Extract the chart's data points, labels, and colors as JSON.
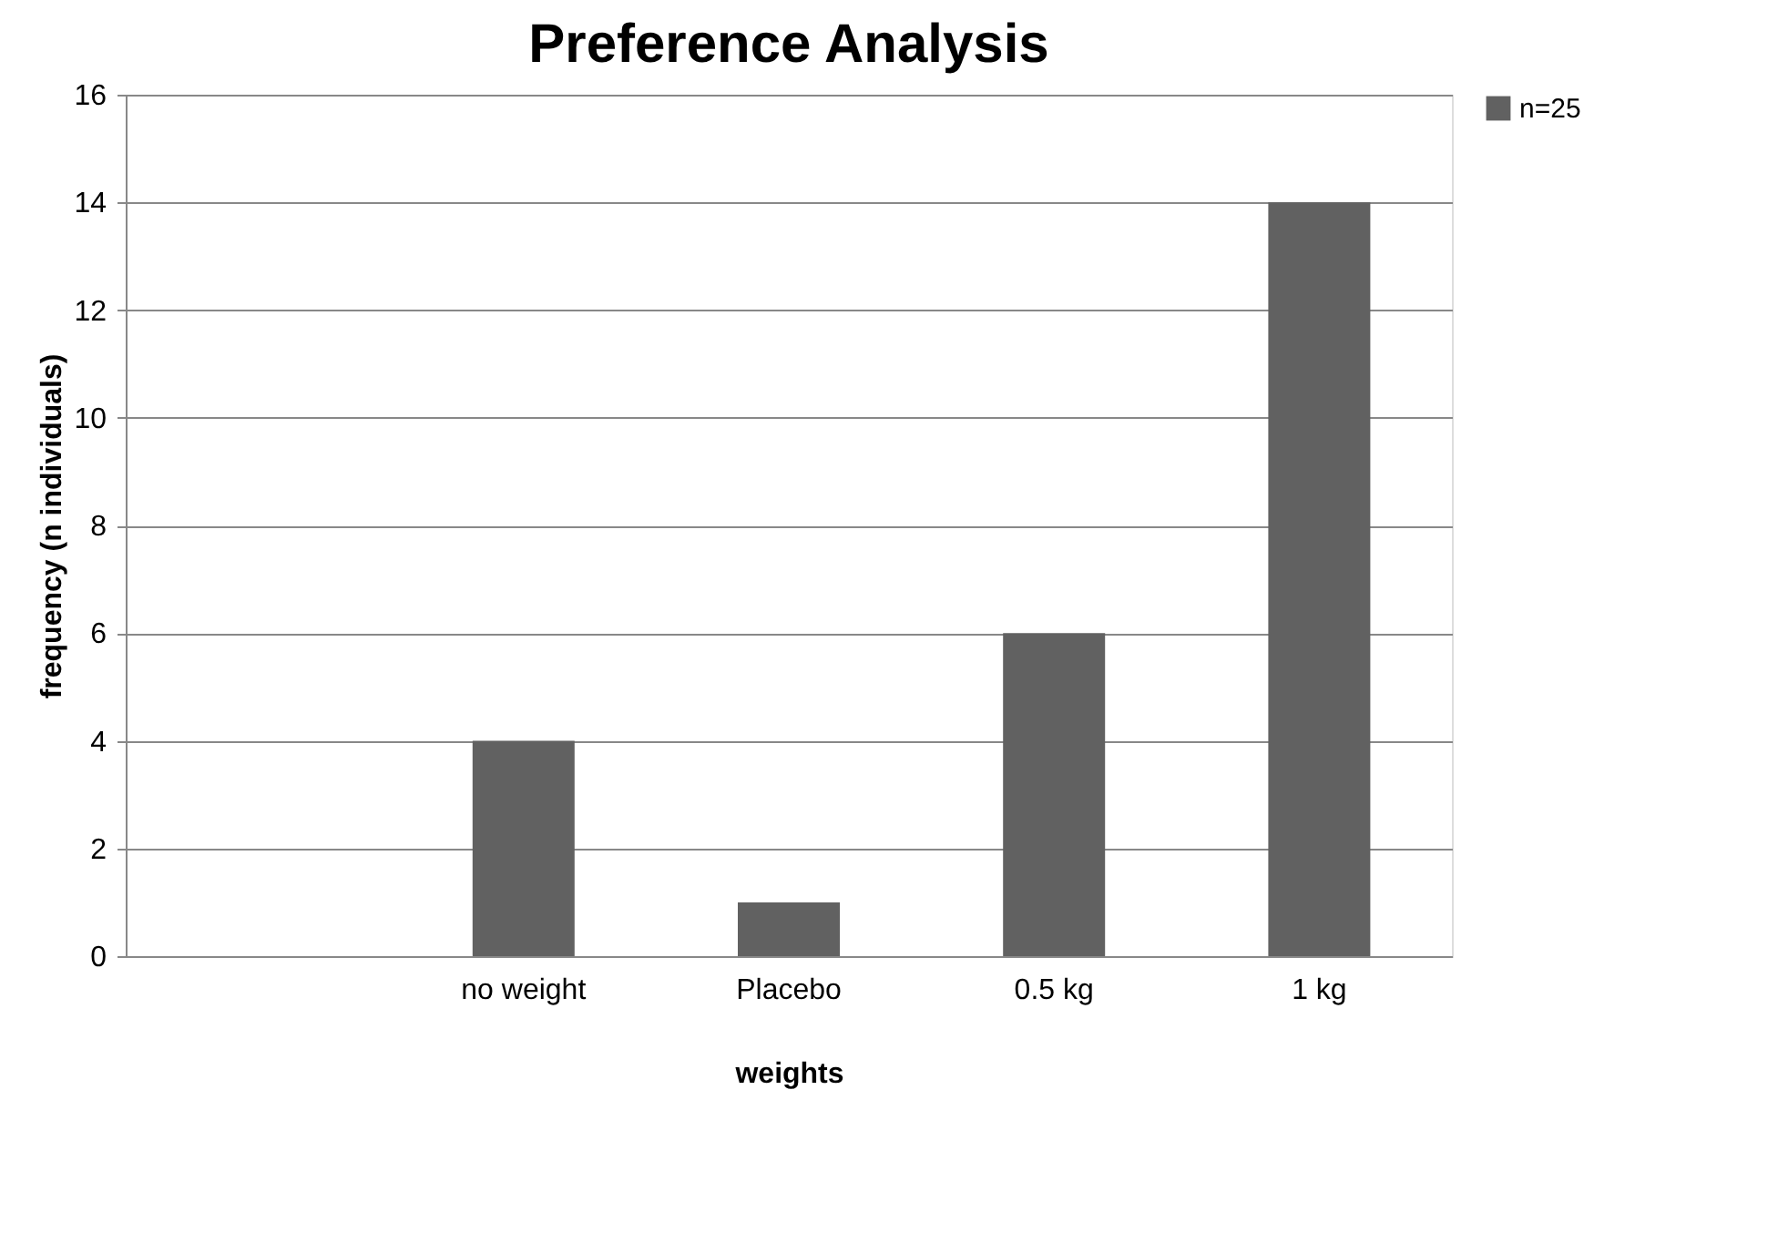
{
  "chart_data": {
    "type": "bar",
    "title": "Preference Analysis",
    "xlabel": "weights",
    "ylabel": "frequency (n  individuals)",
    "categories": [
      null,
      "no weight",
      "Placebo",
      "0.5 kg",
      "1 kg"
    ],
    "series": [
      {
        "name": "n=25",
        "color": "#616161",
        "values": [
          null,
          4,
          1,
          6,
          14
        ]
      }
    ],
    "ylim": [
      0,
      16
    ],
    "yticks": [
      0,
      2,
      4,
      6,
      8,
      10,
      12,
      14,
      16
    ],
    "grid": "y",
    "legend": "right"
  }
}
